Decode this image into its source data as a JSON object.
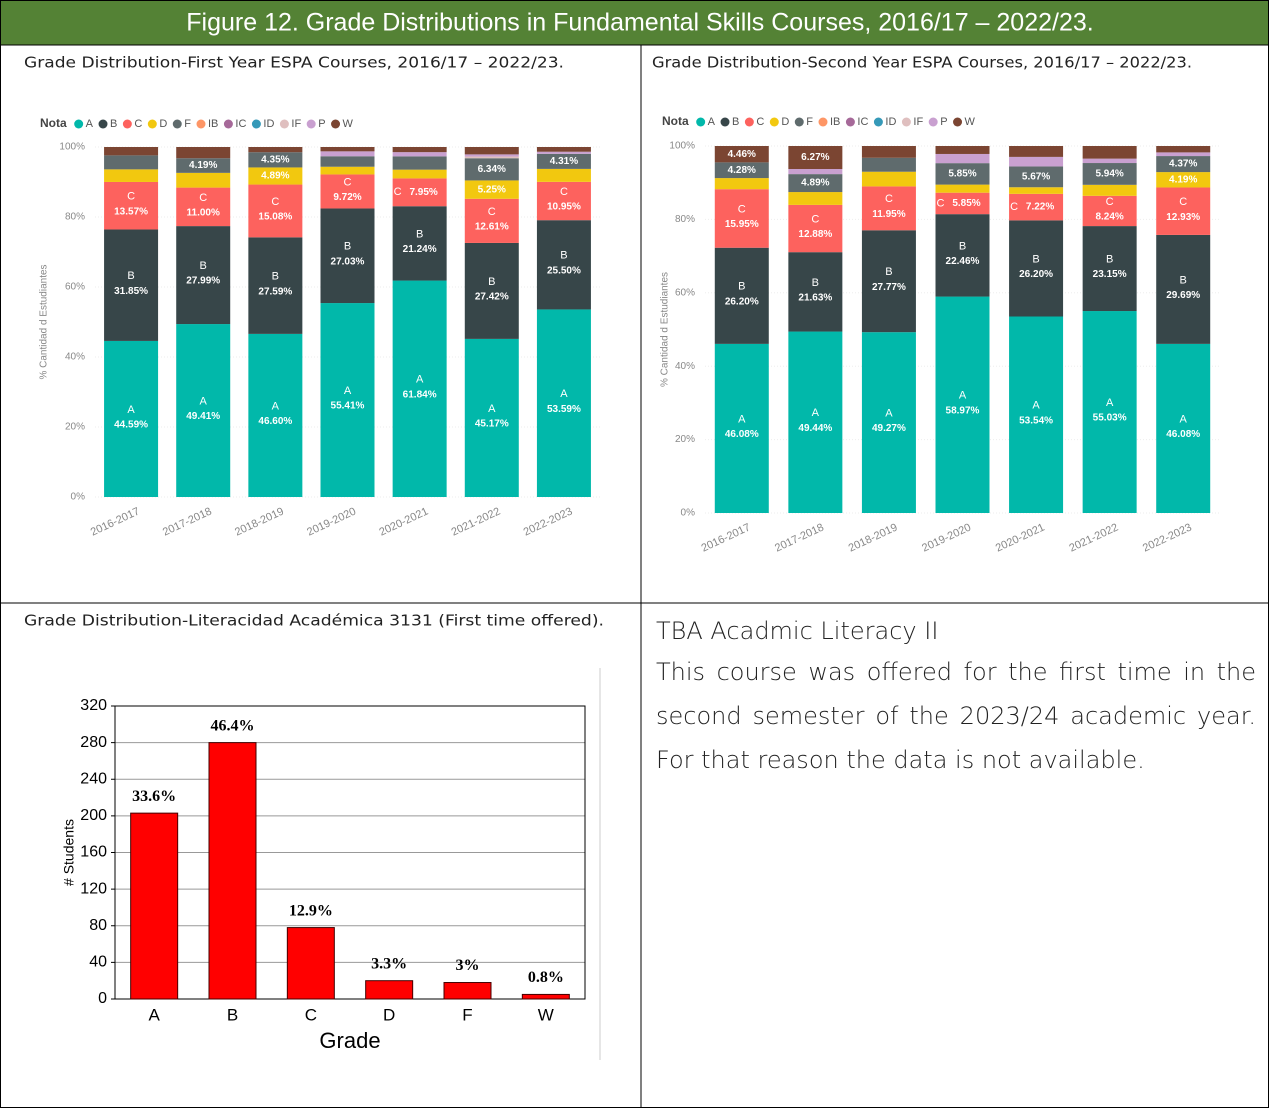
{
  "header": {
    "title": "Figure 12.  Grade Distributions in Fundamental Skills Courses, 2016/17 – 2022/23."
  },
  "chart_data": [
    {
      "type": "stacked_bar",
      "title": "Grade Distribution-First Year ESPA Courses, 2016/17 – 2022/23.",
      "legend_title": "Nota",
      "y_label": "% Cantidad d Estudiantes",
      "grid": true,
      "categories": [
        "2016-2017",
        "2017-2018",
        "2018-2019",
        "2019-2020",
        "2020-2021",
        "2021-2022",
        "2022-2023"
      ],
      "ylim": [
        0,
        100
      ],
      "yticks": [
        {
          "value": 0,
          "label": "0%"
        },
        {
          "value": 20,
          "label": "20%"
        },
        {
          "value": 40,
          "label": "40%"
        },
        {
          "value": 60,
          "label": "60%"
        },
        {
          "value": 80,
          "label": "80%"
        },
        {
          "value": 100,
          "label": "100%"
        }
      ],
      "series": [
        {
          "name": "A",
          "color": "#01b8aa",
          "name_labels": true,
          "values": [
            44.59,
            49.41,
            46.6,
            55.41,
            61.84,
            45.17,
            53.59
          ],
          "value_labels": [
            "44.59%",
            "49.41%",
            "46.60%",
            "55.41%",
            "61.84%",
            "45.17%",
            "53.59%"
          ]
        },
        {
          "name": "B",
          "color": "#374649",
          "name_labels": true,
          "values": [
            31.85,
            27.99,
            27.59,
            27.03,
            21.24,
            27.42,
            25.5
          ],
          "value_labels": [
            "31.85%",
            "27.99%",
            "27.59%",
            "27.03%",
            "21.24%",
            "27.42%",
            "25.50%"
          ]
        },
        {
          "name": "C",
          "color": "#fd625e",
          "name_labels": true,
          "values": [
            13.57,
            11.0,
            15.08,
            9.72,
            7.95,
            12.61,
            10.95
          ],
          "value_labels": [
            "13.57%",
            "11.00%",
            "15.08%",
            "9.72%",
            "7.95%",
            "12.61%",
            "10.95%"
          ]
        },
        {
          "name": "D",
          "color": "#f2c80f",
          "values": [
            3.6,
            4.21,
            4.89,
            2.2,
            2.5,
            5.25,
            3.7
          ],
          "value_labels": [
            null,
            null,
            "4.89%",
            null,
            null,
            "5.25%",
            null
          ]
        },
        {
          "name": "F",
          "color": "#5f6b6d",
          "values": [
            4.0,
            4.19,
            4.35,
            3.0,
            3.8,
            6.34,
            4.31
          ],
          "value_labels": [
            null,
            "4.19%",
            "4.35%",
            null,
            null,
            "6.34%",
            "4.31%"
          ]
        },
        {
          "name": "IB",
          "color": "#fe9666",
          "values": [
            0,
            0,
            0,
            0,
            0,
            0,
            0
          ]
        },
        {
          "name": "IC",
          "color": "#a66999",
          "values": [
            0,
            0,
            0,
            0,
            0,
            0,
            0
          ]
        },
        {
          "name": "ID",
          "color": "#3599b8",
          "values": [
            0,
            0,
            0,
            0,
            0,
            0,
            0
          ]
        },
        {
          "name": "IF",
          "color": "#dfbfbf",
          "values": [
            0,
            0,
            0,
            0,
            0,
            0.5,
            0
          ]
        },
        {
          "name": "P",
          "color": "#c9a0d0",
          "values": [
            0,
            0,
            0,
            1.4,
            1.2,
            0.6,
            0.6
          ]
        },
        {
          "name": "W",
          "color": "#7b4532",
          "values": [
            2.39,
            3.2,
            1.49,
            1.24,
            1.47,
            2.11,
            1.35
          ]
        }
      ]
    },
    {
      "type": "stacked_bar",
      "title": "Grade Distribution-Second Year ESPA Courses, 2016/17 – 2022/23.",
      "legend_title": "Nota",
      "y_label": "% Cantidad d Estudiantes",
      "grid": true,
      "categories": [
        "2016-2017",
        "2017-2018",
        "2018-2019",
        "2019-2020",
        "2020-2021",
        "2021-2022",
        "2022-2023"
      ],
      "ylim": [
        0,
        100
      ],
      "yticks": [
        {
          "value": 0,
          "label": "0%"
        },
        {
          "value": 20,
          "label": "20%"
        },
        {
          "value": 40,
          "label": "40%"
        },
        {
          "value": 60,
          "label": "60%"
        },
        {
          "value": 80,
          "label": "80%"
        },
        {
          "value": 100,
          "label": "100%"
        }
      ],
      "series": [
        {
          "name": "A",
          "color": "#01b8aa",
          "name_labels": true,
          "values": [
            46.08,
            49.44,
            49.27,
            58.97,
            53.54,
            55.03,
            46.08
          ],
          "value_labels": [
            "46.08%",
            "49.44%",
            "49.27%",
            "58.97%",
            "53.54%",
            "55.03%",
            "46.08%"
          ]
        },
        {
          "name": "B",
          "color": "#374649",
          "name_labels": true,
          "values": [
            26.2,
            21.63,
            27.77,
            22.46,
            26.2,
            23.15,
            29.69
          ],
          "value_labels": [
            "26.20%",
            "21.63%",
            "27.77%",
            "22.46%",
            "26.20%",
            "23.15%",
            "29.69%"
          ]
        },
        {
          "name": "C",
          "color": "#fd625e",
          "name_labels": true,
          "values": [
            15.95,
            12.88,
            11.95,
            5.85,
            7.22,
            8.24,
            12.93
          ],
          "value_labels": [
            "15.95%",
            "12.88%",
            "11.95%",
            "5.85%",
            "7.22%",
            "8.24%",
            "12.93%"
          ]
        },
        {
          "name": "D",
          "color": "#f2c80f",
          "values": [
            3.03,
            3.5,
            4.0,
            2.2,
            1.8,
            3.0,
            4.19
          ],
          "value_labels": [
            null,
            null,
            null,
            null,
            null,
            null,
            "4.19%"
          ]
        },
        {
          "name": "F",
          "color": "#5f6b6d",
          "values": [
            4.28,
            4.89,
            3.8,
            5.85,
            5.67,
            5.94,
            4.37
          ],
          "value_labels": [
            "4.28%",
            "4.89%",
            null,
            "5.85%",
            "5.67%",
            "5.94%",
            "4.37%"
          ]
        },
        {
          "name": "IB",
          "color": "#fe9666",
          "values": [
            0,
            0,
            0,
            0,
            0,
            0,
            0
          ]
        },
        {
          "name": "IC",
          "color": "#a66999",
          "values": [
            0,
            0,
            0,
            0,
            0,
            0,
            0
          ]
        },
        {
          "name": "ID",
          "color": "#3599b8",
          "values": [
            0,
            0,
            0,
            0,
            0,
            0,
            0
          ]
        },
        {
          "name": "IF",
          "color": "#dfbfbf",
          "values": [
            0,
            0,
            0,
            0,
            0,
            0,
            0
          ]
        },
        {
          "name": "P",
          "color": "#c9a0d0",
          "values": [
            0,
            1.39,
            0,
            2.5,
            2.6,
            1.2,
            1.0
          ]
        },
        {
          "name": "W",
          "color": "#7b4532",
          "values": [
            4.46,
            6.27,
            3.21,
            2.17,
            2.97,
            3.44,
            1.74
          ],
          "value_labels": [
            "4.46%",
            "6.27%",
            null,
            null,
            null,
            null,
            null
          ]
        }
      ]
    },
    {
      "type": "bar",
      "title": "Grade Distribution-Literacidad Académica 3131 (First time offered).",
      "x_label": "Grade",
      "y_label": "# Students",
      "grid": true,
      "color": "#ff0000",
      "categories": [
        "A",
        "B",
        "C",
        "D",
        "F",
        "W"
      ],
      "values": [
        203,
        280,
        78,
        20,
        18,
        5
      ],
      "data_labels": [
        "33.6%",
        "46.4%",
        "12.9%",
        "3.3%",
        "3%",
        "0.8%"
      ],
      "ylim": [
        0,
        320
      ],
      "yticks": [
        0,
        40,
        80,
        120,
        160,
        200,
        240,
        280,
        320
      ]
    }
  ],
  "note": {
    "title": "TBA Acadmic Literacy II",
    "text": "This course was offered for the first time in the second semester of the 2023/24 academic year. For that reason the data is not available."
  }
}
